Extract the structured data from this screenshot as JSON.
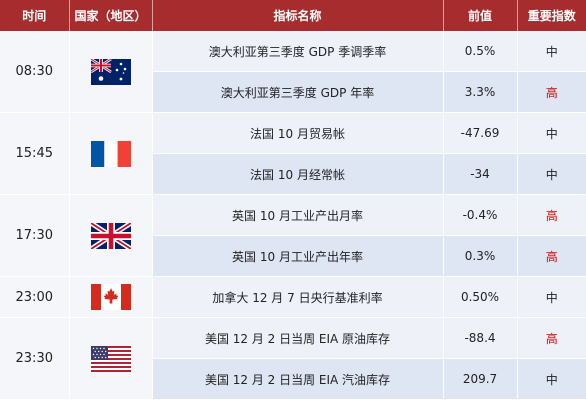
{
  "headers": {
    "time": "时间",
    "country": "国家（地区）",
    "indicator": "指标名称",
    "previous": "前值",
    "importance": "重要指数"
  },
  "colors": {
    "header_bg": "#a72c2e",
    "high_importance": "#d80000"
  },
  "groups": [
    {
      "time": "08:30",
      "flag": "australia-flag-icon",
      "rows": [
        {
          "indicator": "澳大利亚第三季度 GDP 季调季率",
          "previous": "0.5%",
          "importance": "中",
          "level": "mid"
        },
        {
          "indicator": "澳大利亚第三季度 GDP 年率",
          "previous": "3.3%",
          "importance": "高",
          "level": "high"
        }
      ]
    },
    {
      "time": "15:45",
      "flag": "france-flag-icon",
      "rows": [
        {
          "indicator": "法国 10 月贸易帐",
          "previous": "-47.69",
          "importance": "中",
          "level": "mid"
        },
        {
          "indicator": "法国 10 月经常帐",
          "previous": "-34",
          "importance": "中",
          "level": "mid"
        }
      ]
    },
    {
      "time": "17:30",
      "flag": "uk-flag-icon",
      "rows": [
        {
          "indicator": "英国 10 月工业产出月率",
          "previous": "-0.4%",
          "importance": "高",
          "level": "high"
        },
        {
          "indicator": "英国 10 月工业产出年率",
          "previous": "0.3%",
          "importance": "高",
          "level": "high"
        }
      ]
    },
    {
      "time": "23:00",
      "flag": "canada-flag-icon",
      "rows": [
        {
          "indicator": "加拿大 12 月 7 日央行基准利率",
          "previous": "0.50%",
          "importance": "中",
          "level": "mid"
        }
      ]
    },
    {
      "time": "23:30",
      "flag": "usa-flag-icon",
      "rows": [
        {
          "indicator": "美国 12 月 2 日当周 EIA 原油库存",
          "previous": "-88.4",
          "importance": "高",
          "level": "high"
        },
        {
          "indicator": "美国 12 月 2 日当周 EIA 汽油库存",
          "previous": "209.7",
          "importance": "中",
          "level": "mid"
        }
      ]
    }
  ]
}
